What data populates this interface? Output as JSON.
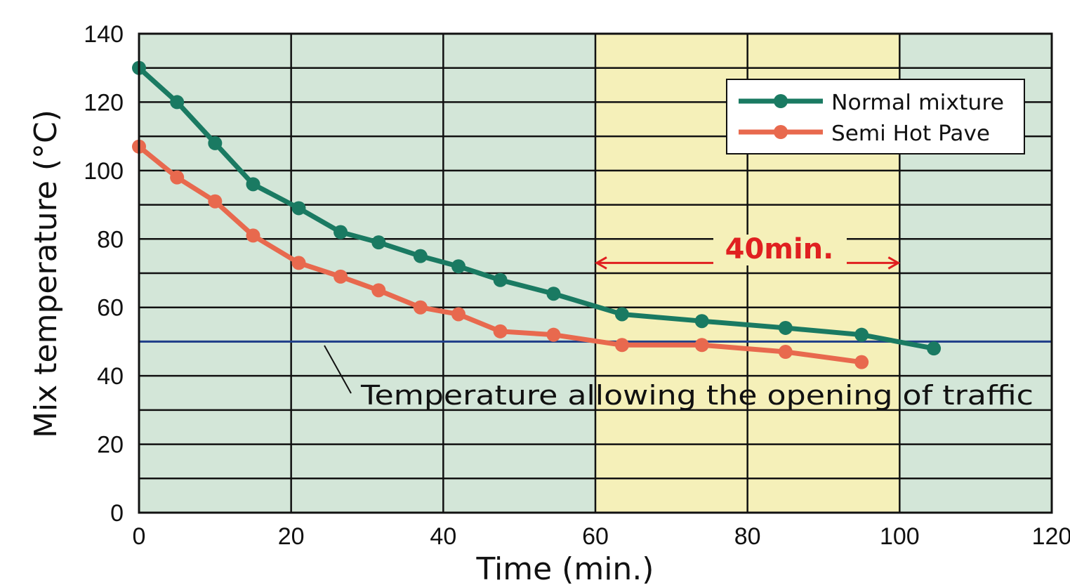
{
  "chart_data": {
    "type": "line",
    "title": "",
    "xlabel": "Time (min.)",
    "ylabel": "Mix temperature (°C)",
    "xlim": [
      0,
      120
    ],
    "ylim": [
      0,
      140
    ],
    "x_ticks": [
      0,
      20,
      40,
      60,
      80,
      100,
      120
    ],
    "y_ticks": [
      0,
      20,
      40,
      60,
      80,
      100,
      120,
      140
    ],
    "y_minor_gridlines": [
      10,
      30,
      50,
      70,
      90,
      110,
      130
    ],
    "grid": true,
    "background_color": "#d3e6d8",
    "highlight_band": {
      "x_range": [
        60,
        100
      ],
      "color": "#f5f0b9"
    },
    "legend": {
      "placement": "top-right",
      "entries": [
        "Normal mixture",
        "Semi Hot Pave"
      ]
    },
    "series": [
      {
        "name": "Normal mixture",
        "color": "#1a7a62",
        "x": [
          0,
          5,
          10,
          15,
          21,
          26.5,
          31.5,
          37,
          42,
          47.5,
          54.5,
          63.5,
          74,
          85,
          95,
          104.5
        ],
        "y": [
          130,
          120,
          108,
          96,
          89,
          82,
          79,
          75,
          72,
          68,
          64,
          58,
          56,
          54,
          52,
          48
        ]
      },
      {
        "name": "Semi Hot Pave",
        "color": "#e8694e",
        "x": [
          0,
          5,
          10,
          15,
          21,
          26.5,
          31.5,
          37,
          42,
          47.5,
          54.5,
          63.5,
          74,
          85,
          95
        ],
        "y": [
          107,
          98,
          91,
          81,
          73,
          69,
          65,
          60,
          58,
          53,
          52,
          49,
          49,
          47,
          44
        ]
      }
    ],
    "reference_line": {
      "y": 50,
      "color": "#1f3f8a",
      "label": "Temperature allowing the opening of traffic"
    },
    "span_annotation": {
      "x_range": [
        60,
        100
      ],
      "y": 73,
      "label": "40min.",
      "color": "#e02020"
    }
  }
}
